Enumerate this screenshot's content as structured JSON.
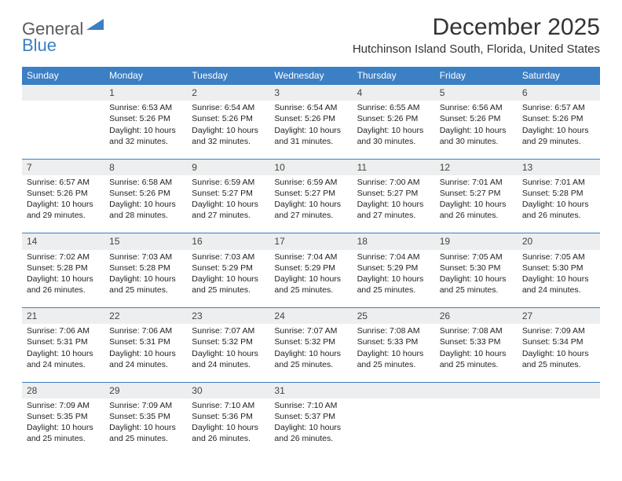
{
  "logo": {
    "text1": "General",
    "text2": "Blue"
  },
  "title": "December 2025",
  "location": "Hutchinson Island South, Florida, United States",
  "colors": {
    "header_bg": "#3b7fc4",
    "header_text": "#ffffff",
    "daynum_bg": "#eceeef",
    "border": "#3b7fc4",
    "text": "#222222",
    "title_text": "#333333",
    "logo_gray": "#5a5a5a",
    "logo_blue": "#3b7fc4"
  },
  "typography": {
    "title_fontsize": 30,
    "location_fontsize": 15,
    "th_fontsize": 12,
    "cell_fontsize": 10.5,
    "logo_fontsize": 22
  },
  "dayNames": [
    "Sunday",
    "Monday",
    "Tuesday",
    "Wednesday",
    "Thursday",
    "Friday",
    "Saturday"
  ],
  "weeks": [
    [
      {
        "empty": true
      },
      {
        "num": "1",
        "sunrise": "Sunrise: 6:53 AM",
        "sunset": "Sunset: 5:26 PM",
        "day1": "Daylight: 10 hours",
        "day2": "and 32 minutes."
      },
      {
        "num": "2",
        "sunrise": "Sunrise: 6:54 AM",
        "sunset": "Sunset: 5:26 PM",
        "day1": "Daylight: 10 hours",
        "day2": "and 32 minutes."
      },
      {
        "num": "3",
        "sunrise": "Sunrise: 6:54 AM",
        "sunset": "Sunset: 5:26 PM",
        "day1": "Daylight: 10 hours",
        "day2": "and 31 minutes."
      },
      {
        "num": "4",
        "sunrise": "Sunrise: 6:55 AM",
        "sunset": "Sunset: 5:26 PM",
        "day1": "Daylight: 10 hours",
        "day2": "and 30 minutes."
      },
      {
        "num": "5",
        "sunrise": "Sunrise: 6:56 AM",
        "sunset": "Sunset: 5:26 PM",
        "day1": "Daylight: 10 hours",
        "day2": "and 30 minutes."
      },
      {
        "num": "6",
        "sunrise": "Sunrise: 6:57 AM",
        "sunset": "Sunset: 5:26 PM",
        "day1": "Daylight: 10 hours",
        "day2": "and 29 minutes."
      }
    ],
    [
      {
        "num": "7",
        "sunrise": "Sunrise: 6:57 AM",
        "sunset": "Sunset: 5:26 PM",
        "day1": "Daylight: 10 hours",
        "day2": "and 29 minutes."
      },
      {
        "num": "8",
        "sunrise": "Sunrise: 6:58 AM",
        "sunset": "Sunset: 5:26 PM",
        "day1": "Daylight: 10 hours",
        "day2": "and 28 minutes."
      },
      {
        "num": "9",
        "sunrise": "Sunrise: 6:59 AM",
        "sunset": "Sunset: 5:27 PM",
        "day1": "Daylight: 10 hours",
        "day2": "and 27 minutes."
      },
      {
        "num": "10",
        "sunrise": "Sunrise: 6:59 AM",
        "sunset": "Sunset: 5:27 PM",
        "day1": "Daylight: 10 hours",
        "day2": "and 27 minutes."
      },
      {
        "num": "11",
        "sunrise": "Sunrise: 7:00 AM",
        "sunset": "Sunset: 5:27 PM",
        "day1": "Daylight: 10 hours",
        "day2": "and 27 minutes."
      },
      {
        "num": "12",
        "sunrise": "Sunrise: 7:01 AM",
        "sunset": "Sunset: 5:27 PM",
        "day1": "Daylight: 10 hours",
        "day2": "and 26 minutes."
      },
      {
        "num": "13",
        "sunrise": "Sunrise: 7:01 AM",
        "sunset": "Sunset: 5:28 PM",
        "day1": "Daylight: 10 hours",
        "day2": "and 26 minutes."
      }
    ],
    [
      {
        "num": "14",
        "sunrise": "Sunrise: 7:02 AM",
        "sunset": "Sunset: 5:28 PM",
        "day1": "Daylight: 10 hours",
        "day2": "and 26 minutes."
      },
      {
        "num": "15",
        "sunrise": "Sunrise: 7:03 AM",
        "sunset": "Sunset: 5:28 PM",
        "day1": "Daylight: 10 hours",
        "day2": "and 25 minutes."
      },
      {
        "num": "16",
        "sunrise": "Sunrise: 7:03 AM",
        "sunset": "Sunset: 5:29 PM",
        "day1": "Daylight: 10 hours",
        "day2": "and 25 minutes."
      },
      {
        "num": "17",
        "sunrise": "Sunrise: 7:04 AM",
        "sunset": "Sunset: 5:29 PM",
        "day1": "Daylight: 10 hours",
        "day2": "and 25 minutes."
      },
      {
        "num": "18",
        "sunrise": "Sunrise: 7:04 AM",
        "sunset": "Sunset: 5:29 PM",
        "day1": "Daylight: 10 hours",
        "day2": "and 25 minutes."
      },
      {
        "num": "19",
        "sunrise": "Sunrise: 7:05 AM",
        "sunset": "Sunset: 5:30 PM",
        "day1": "Daylight: 10 hours",
        "day2": "and 25 minutes."
      },
      {
        "num": "20",
        "sunrise": "Sunrise: 7:05 AM",
        "sunset": "Sunset: 5:30 PM",
        "day1": "Daylight: 10 hours",
        "day2": "and 24 minutes."
      }
    ],
    [
      {
        "num": "21",
        "sunrise": "Sunrise: 7:06 AM",
        "sunset": "Sunset: 5:31 PM",
        "day1": "Daylight: 10 hours",
        "day2": "and 24 minutes."
      },
      {
        "num": "22",
        "sunrise": "Sunrise: 7:06 AM",
        "sunset": "Sunset: 5:31 PM",
        "day1": "Daylight: 10 hours",
        "day2": "and 24 minutes."
      },
      {
        "num": "23",
        "sunrise": "Sunrise: 7:07 AM",
        "sunset": "Sunset: 5:32 PM",
        "day1": "Daylight: 10 hours",
        "day2": "and 24 minutes."
      },
      {
        "num": "24",
        "sunrise": "Sunrise: 7:07 AM",
        "sunset": "Sunset: 5:32 PM",
        "day1": "Daylight: 10 hours",
        "day2": "and 25 minutes."
      },
      {
        "num": "25",
        "sunrise": "Sunrise: 7:08 AM",
        "sunset": "Sunset: 5:33 PM",
        "day1": "Daylight: 10 hours",
        "day2": "and 25 minutes."
      },
      {
        "num": "26",
        "sunrise": "Sunrise: 7:08 AM",
        "sunset": "Sunset: 5:33 PM",
        "day1": "Daylight: 10 hours",
        "day2": "and 25 minutes."
      },
      {
        "num": "27",
        "sunrise": "Sunrise: 7:09 AM",
        "sunset": "Sunset: 5:34 PM",
        "day1": "Daylight: 10 hours",
        "day2": "and 25 minutes."
      }
    ],
    [
      {
        "num": "28",
        "sunrise": "Sunrise: 7:09 AM",
        "sunset": "Sunset: 5:35 PM",
        "day1": "Daylight: 10 hours",
        "day2": "and 25 minutes."
      },
      {
        "num": "29",
        "sunrise": "Sunrise: 7:09 AM",
        "sunset": "Sunset: 5:35 PM",
        "day1": "Daylight: 10 hours",
        "day2": "and 25 minutes."
      },
      {
        "num": "30",
        "sunrise": "Sunrise: 7:10 AM",
        "sunset": "Sunset: 5:36 PM",
        "day1": "Daylight: 10 hours",
        "day2": "and 26 minutes."
      },
      {
        "num": "31",
        "sunrise": "Sunrise: 7:10 AM",
        "sunset": "Sunset: 5:37 PM",
        "day1": "Daylight: 10 hours",
        "day2": "and 26 minutes."
      },
      {
        "empty": true
      },
      {
        "empty": true
      },
      {
        "empty": true
      }
    ]
  ]
}
